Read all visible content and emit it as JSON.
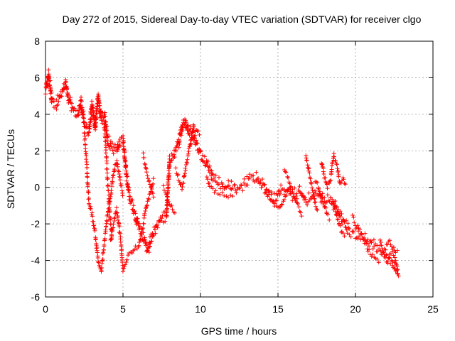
{
  "chart_data": {
    "type": "scatter",
    "title": "Day 272 of 2015, Sidereal Day-to-day VTEC variation (SDTVAR) for receiver clgo",
    "xlabel": "GPS time / hours",
    "ylabel": "SDTVAR / TECUs",
    "xlim": [
      0,
      25
    ],
    "ylim": [
      -6,
      8
    ],
    "xticks": [
      0,
      5,
      10,
      15,
      20,
      25
    ],
    "yticks": [
      -6,
      -4,
      -2,
      0,
      2,
      4,
      6,
      8
    ],
    "grid": true,
    "marker": "+",
    "color": "#ff0000",
    "trace": [
      [
        0.0,
        5.2
      ],
      [
        0.2,
        6.1
      ],
      [
        0.4,
        4.7
      ],
      [
        0.7,
        4.5
      ],
      [
        1.0,
        5.0
      ],
      [
        1.3,
        5.6
      ],
      [
        1.5,
        4.7
      ],
      [
        1.8,
        4.2
      ],
      [
        2.1,
        3.9
      ],
      [
        2.3,
        4.6
      ],
      [
        2.5,
        3.4
      ],
      [
        2.8,
        3.0
      ],
      [
        3.0,
        4.4
      ],
      [
        3.2,
        3.2
      ],
      [
        3.4,
        4.9
      ],
      [
        3.6,
        3.6
      ],
      [
        3.8,
        3.9
      ],
      [
        4.0,
        2.6
      ],
      [
        4.2,
        2.2
      ],
      [
        4.4,
        2.0
      ],
      [
        4.6,
        1.9
      ],
      [
        4.8,
        2.5
      ],
      [
        5.0,
        2.6
      ],
      [
        5.2,
        0.8
      ],
      [
        5.4,
        -0.5
      ],
      [
        5.6,
        -1.0
      ],
      [
        5.8,
        -1.6
      ],
      [
        6.0,
        -2.2
      ],
      [
        6.2,
        -2.6
      ],
      [
        6.4,
        -3.0
      ],
      [
        6.6,
        -3.6
      ],
      [
        6.8,
        -2.9
      ],
      [
        7.0,
        -2.5
      ],
      [
        7.2,
        -2.2
      ],
      [
        7.4,
        -1.9
      ],
      [
        7.6,
        -1.7
      ],
      [
        7.8,
        -1.7
      ],
      [
        8.0,
        1.4
      ],
      [
        8.3,
        1.8
      ],
      [
        8.6,
        2.4
      ],
      [
        8.9,
        3.5
      ],
      [
        9.2,
        3.2
      ],
      [
        9.5,
        2.9
      ],
      [
        9.8,
        2.2
      ],
      [
        10.0,
        1.8
      ],
      [
        10.4,
        1.3
      ],
      [
        10.8,
        0.5
      ],
      [
        11.2,
        0.2
      ],
      [
        11.6,
        -0.1
      ],
      [
        12.0,
        0.1
      ],
      [
        12.4,
        -0.2
      ],
      [
        12.8,
        0.1
      ],
      [
        13.2,
        0.4
      ],
      [
        13.6,
        0.5
      ],
      [
        14.0,
        0.1
      ],
      [
        14.4,
        -0.4
      ],
      [
        14.8,
        -0.7
      ],
      [
        15.2,
        -0.2
      ],
      [
        15.6,
        -0.3
      ],
      [
        16.0,
        -0.6
      ],
      [
        16.4,
        -0.3
      ],
      [
        16.8,
        -0.8
      ],
      [
        17.2,
        -0.6
      ],
      [
        17.6,
        -0.4
      ],
      [
        18.0,
        -0.9
      ],
      [
        18.4,
        -0.7
      ],
      [
        18.8,
        -1.3
      ],
      [
        19.2,
        -1.9
      ],
      [
        19.6,
        -2.5
      ],
      [
        20.0,
        -2.6
      ],
      [
        20.4,
        -2.8
      ],
      [
        20.8,
        -3.0
      ],
      [
        21.2,
        -3.2
      ],
      [
        21.6,
        -3.5
      ],
      [
        22.0,
        -3.9
      ],
      [
        22.4,
        -4.2
      ],
      [
        22.8,
        -4.8
      ]
    ],
    "excursions": [
      [
        [
          2.5,
          3.2
        ],
        [
          2.6,
          2.0
        ],
        [
          2.7,
          0.5
        ],
        [
          2.8,
          -0.8
        ],
        [
          3.0,
          -1.5
        ],
        [
          3.2,
          -2.5
        ],
        [
          3.4,
          -4.0
        ],
        [
          3.6,
          -4.6
        ],
        [
          3.8,
          -3.0
        ],
        [
          4.0,
          -1.5
        ],
        [
          4.2,
          -0.5
        ],
        [
          4.4,
          0.8
        ],
        [
          4.6,
          1.5
        ],
        [
          4.8,
          0.5
        ],
        [
          5.0,
          -0.5
        ]
      ],
      [
        [
          4.2,
          -3.0
        ],
        [
          4.4,
          -2.0
        ],
        [
          4.6,
          -1.2
        ],
        [
          4.8,
          -2.5
        ],
        [
          5.0,
          -4.5
        ],
        [
          5.2,
          -4.0
        ],
        [
          5.4,
          -3.6
        ],
        [
          5.6,
          -3.5
        ],
        [
          5.8,
          -3.2
        ],
        [
          6.0,
          -3.3
        ],
        [
          6.2,
          -2.5
        ],
        [
          6.4,
          -1.5
        ],
        [
          6.6,
          -0.8
        ],
        [
          6.8,
          -0.2
        ],
        [
          7.0,
          0.5
        ]
      ],
      [
        [
          3.8,
          3.4
        ],
        [
          3.9,
          2.0
        ],
        [
          4.0,
          0.5
        ],
        [
          4.1,
          -0.8
        ],
        [
          4.2,
          -2.0
        ],
        [
          4.3,
          -3.0
        ]
      ],
      [
        [
          6.3,
          1.8
        ],
        [
          6.4,
          1.4
        ],
        [
          6.5,
          0.9
        ],
        [
          6.6,
          0.5
        ],
        [
          6.8,
          0.0
        ],
        [
          7.0,
          -0.6
        ]
      ],
      [
        [
          7.6,
          0.0
        ],
        [
          7.8,
          -0.4
        ],
        [
          8.0,
          -0.8
        ],
        [
          8.2,
          -1.2
        ],
        [
          8.4,
          -1.6
        ]
      ],
      [
        [
          8.4,
          1.0
        ],
        [
          8.6,
          0.5
        ],
        [
          8.8,
          0.0
        ],
        [
          9.0,
          0.8
        ],
        [
          9.2,
          1.8
        ],
        [
          9.4,
          2.6
        ],
        [
          9.6,
          3.6
        ]
      ],
      [
        [
          9.0,
          3.8
        ],
        [
          9.2,
          3.0
        ],
        [
          9.4,
          2.5
        ],
        [
          9.6,
          2.8
        ],
        [
          9.8,
          3.2
        ],
        [
          10.0,
          2.8
        ]
      ],
      [
        [
          10.4,
          0.5
        ],
        [
          10.6,
          0.0
        ],
        [
          11.0,
          -0.3
        ],
        [
          11.4,
          -0.4
        ],
        [
          11.8,
          -0.6
        ],
        [
          12.2,
          -0.4
        ]
      ],
      [
        [
          14.2,
          -0.2
        ],
        [
          14.6,
          -0.8
        ],
        [
          15.0,
          -1.2
        ],
        [
          15.4,
          -0.6
        ],
        [
          15.8,
          0.0
        ],
        [
          16.2,
          -0.2
        ]
      ],
      [
        [
          15.4,
          1.0
        ],
        [
          15.6,
          0.6
        ],
        [
          16.0,
          -0.4
        ],
        [
          16.4,
          -1.2
        ],
        [
          16.6,
          -1.6
        ]
      ],
      [
        [
          16.8,
          1.8
        ],
        [
          17.0,
          0.8
        ],
        [
          17.2,
          0.0
        ],
        [
          17.4,
          -0.9
        ],
        [
          17.6,
          -1.4
        ]
      ],
      [
        [
          17.4,
          0.4
        ],
        [
          17.6,
          0.0
        ],
        [
          17.8,
          -0.6
        ],
        [
          18.0,
          -1.0
        ],
        [
          18.2,
          -1.6
        ],
        [
          18.4,
          -1.8
        ]
      ],
      [
        [
          17.8,
          1.4
        ],
        [
          18.0,
          0.6
        ],
        [
          18.2,
          0.0
        ],
        [
          18.4,
          0.5
        ],
        [
          18.6,
          1.8
        ],
        [
          18.8,
          1.2
        ],
        [
          19.0,
          0.2
        ],
        [
          19.2,
          0.5
        ],
        [
          19.4,
          0.0
        ]
      ],
      [
        [
          18.6,
          -0.8
        ],
        [
          18.8,
          -1.6
        ],
        [
          19.0,
          -2.2
        ],
        [
          19.2,
          -2.6
        ],
        [
          19.4,
          -2.8
        ]
      ],
      [
        [
          19.8,
          -1.6
        ],
        [
          20.0,
          -2.0
        ],
        [
          20.4,
          -2.6
        ],
        [
          20.8,
          -3.4
        ],
        [
          21.2,
          -3.9
        ],
        [
          21.6,
          -4.2
        ]
      ],
      [
        [
          21.6,
          -3.0
        ],
        [
          21.8,
          -3.6
        ],
        [
          22.0,
          -3.2
        ],
        [
          22.2,
          -2.9
        ],
        [
          22.4,
          -3.3
        ],
        [
          22.6,
          -3.6
        ],
        [
          22.8,
          -3.4
        ]
      ],
      [
        [
          22.0,
          -4.2
        ],
        [
          22.2,
          -3.8
        ],
        [
          22.4,
          -3.6
        ],
        [
          22.6,
          -4.0
        ],
        [
          22.8,
          -4.9
        ]
      ]
    ]
  }
}
